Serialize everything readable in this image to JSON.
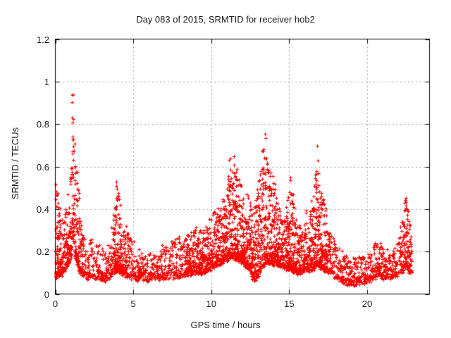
{
  "chart_data": {
    "type": "scatter",
    "title": "Day 083 of 2015, SRMTID for receiver hob2",
    "xlabel": "GPS time / hours",
    "ylabel": "SRMTID / TECUs",
    "xlim": [
      0,
      24
    ],
    "ylim": [
      0,
      1.2
    ],
    "xticks": [
      0,
      5,
      10,
      15,
      20
    ],
    "xtick_labels": [
      "0",
      "5",
      "10",
      "15",
      "20"
    ],
    "yticks": [
      0,
      0.2,
      0.4,
      0.6,
      0.8,
      1.0,
      1.2
    ],
    "ytick_labels": [
      "0",
      "0.2",
      "0.4",
      "0.6",
      "0.8",
      "1",
      "1.2"
    ],
    "grid": true,
    "grid_style": "dotted",
    "grid_color": "#9e9e9e",
    "axis_color": "#000000",
    "background_color": "#ffffff",
    "marker": "plus",
    "marker_color": "#ff0000",
    "marker_size_px": 5,
    "legend": "none",
    "data_start_hour": 0.0,
    "data_end_hour": 22.85,
    "sample_step_hours": 0.0125,
    "shape_exponent": 2.3,
    "seed": 20150383,
    "envelope_description": "Dense low band ~0.07-0.2 TECUs all day; spikes: t~0.05h top 0.53, t~1.1h top 1.05, t~3.95h top 0.56, t~11.25h top 0.72, t~13.45h top 0.80, t~16.8h top 0.72, end rise t~22.45h top 0.47",
    "envelope": {
      "t": [
        0.0,
        0.25,
        0.5,
        0.8,
        1.0,
        1.1,
        1.3,
        1.6,
        2.0,
        2.6,
        3.2,
        3.6,
        3.95,
        4.3,
        4.8,
        5.5,
        6.2,
        6.9,
        7.5,
        8.1,
        8.7,
        9.3,
        9.9,
        10.4,
        10.9,
        11.25,
        11.6,
        12.0,
        12.4,
        12.75,
        13.1,
        13.45,
        13.8,
        14.2,
        14.7,
        15.1,
        15.5,
        16.0,
        16.5,
        16.8,
        17.1,
        17.6,
        18.2,
        18.8,
        19.5,
        20.1,
        20.6,
        21.1,
        21.7,
        22.1,
        22.45,
        22.8
      ],
      "lo": [
        0.08,
        0.09,
        0.1,
        0.14,
        0.18,
        0.3,
        0.16,
        0.1,
        0.08,
        0.08,
        0.07,
        0.09,
        0.12,
        0.1,
        0.08,
        0.07,
        0.07,
        0.08,
        0.08,
        0.09,
        0.1,
        0.1,
        0.12,
        0.14,
        0.16,
        0.18,
        0.17,
        0.15,
        0.12,
        0.06,
        0.1,
        0.15,
        0.15,
        0.14,
        0.12,
        0.12,
        0.1,
        0.11,
        0.12,
        0.14,
        0.12,
        0.1,
        0.07,
        0.05,
        0.05,
        0.06,
        0.08,
        0.08,
        0.08,
        0.1,
        0.13,
        0.1
      ],
      "hi": [
        0.53,
        0.45,
        0.33,
        0.48,
        0.6,
        1.06,
        0.74,
        0.35,
        0.24,
        0.25,
        0.22,
        0.3,
        0.56,
        0.35,
        0.27,
        0.2,
        0.18,
        0.22,
        0.25,
        0.28,
        0.32,
        0.3,
        0.36,
        0.42,
        0.48,
        0.73,
        0.6,
        0.5,
        0.45,
        0.44,
        0.55,
        0.8,
        0.6,
        0.48,
        0.35,
        0.58,
        0.32,
        0.38,
        0.44,
        0.72,
        0.5,
        0.3,
        0.22,
        0.18,
        0.18,
        0.2,
        0.26,
        0.22,
        0.2,
        0.3,
        0.47,
        0.33
      ]
    }
  }
}
